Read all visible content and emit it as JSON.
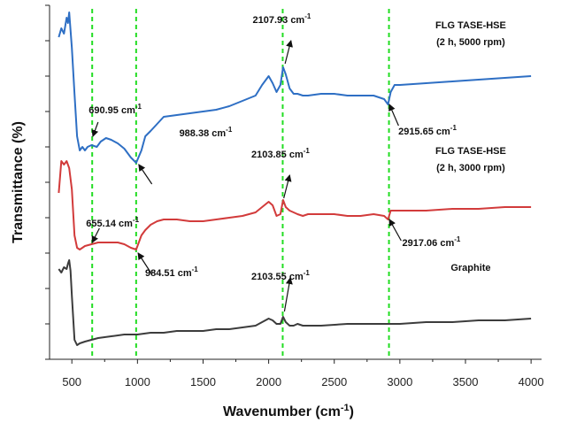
{
  "chart_data": {
    "type": "line",
    "xlabel": "Wavenumber (cm",
    "xlabel_sup": "-1",
    "xlabel_suffix": ")",
    "ylabel": "Transmittance (%)",
    "xlim": [
      330,
      4080
    ],
    "xticks": [
      500,
      1000,
      1500,
      2000,
      2500,
      3000,
      3500,
      4000
    ],
    "y_tick_labels": "none",
    "grid": false,
    "legend": "none",
    "vertical_markers": [
      {
        "x": 655,
        "color": "#22dd22",
        "style": "dashed"
      },
      {
        "x": 990,
        "color": "#22dd22",
        "style": "dashed"
      },
      {
        "x": 2107,
        "color": "#22dd22",
        "style": "dashed"
      },
      {
        "x": 2917,
        "color": "#22dd22",
        "style": "dashed"
      }
    ],
    "series": [
      {
        "color": "#2e6fc4",
        "label_lines": [
          "FLG TASE-HSE",
          "(2 h, 5000 rpm)"
        ],
        "x": [
          400,
          420,
          440,
          460,
          470,
          480,
          490,
          500,
          520,
          540,
          560,
          580,
          600,
          620,
          650,
          690,
          720,
          760,
          800,
          850,
          900,
          950,
          990,
          1030,
          1060,
          1100,
          1150,
          1200,
          1300,
          1400,
          1500,
          1600,
          1700,
          1800,
          1900,
          1950,
          2000,
          2030,
          2060,
          2090,
          2110,
          2130,
          2160,
          2190,
          2220,
          2260,
          2300,
          2400,
          2500,
          2600,
          2700,
          2800,
          2880,
          2910,
          2930,
          2960,
          3000,
          3200,
          3400,
          3600,
          3800,
          4000
        ],
        "y": [
          9.1,
          9.35,
          9.2,
          9.65,
          9.5,
          9.8,
          9.3,
          8.8,
          7.5,
          6.3,
          5.9,
          6.0,
          5.9,
          6.0,
          6.05,
          6.0,
          6.15,
          6.25,
          6.2,
          6.1,
          5.95,
          5.7,
          5.55,
          5.9,
          6.3,
          6.45,
          6.65,
          6.85,
          6.9,
          6.95,
          7.0,
          7.05,
          7.15,
          7.3,
          7.45,
          7.75,
          8.0,
          7.8,
          7.55,
          7.75,
          8.25,
          8.05,
          7.65,
          7.5,
          7.5,
          7.45,
          7.45,
          7.5,
          7.5,
          7.45,
          7.45,
          7.45,
          7.35,
          7.2,
          7.55,
          7.75,
          7.75,
          7.8,
          7.85,
          7.9,
          7.95,
          8.0
        ]
      },
      {
        "color": "#d23b3b",
        "label_lines": [
          "FLG TASE-HSE",
          "(2 h, 3000 rpm)"
        ],
        "x": [
          400,
          420,
          440,
          460,
          480,
          500,
          520,
          540,
          560,
          580,
          600,
          650,
          700,
          750,
          800,
          850,
          900,
          950,
          990,
          1030,
          1060,
          1100,
          1150,
          1200,
          1300,
          1400,
          1500,
          1600,
          1700,
          1800,
          1900,
          1950,
          2000,
          2030,
          2060,
          2090,
          2110,
          2130,
          2160,
          2190,
          2220,
          2260,
          2300,
          2400,
          2500,
          2600,
          2700,
          2800,
          2880,
          2910,
          2930,
          2960,
          3000,
          3200,
          3400,
          3600,
          3800,
          4000
        ],
        "y": [
          4.7,
          5.6,
          5.5,
          5.6,
          5.4,
          4.8,
          3.5,
          3.15,
          3.1,
          3.15,
          3.2,
          3.25,
          3.3,
          3.3,
          3.3,
          3.3,
          3.25,
          3.15,
          3.1,
          3.5,
          3.65,
          3.8,
          3.9,
          3.95,
          3.95,
          3.9,
          3.9,
          3.95,
          4.0,
          4.05,
          4.15,
          4.3,
          4.45,
          4.35,
          4.05,
          4.1,
          4.5,
          4.3,
          4.2,
          4.15,
          4.1,
          4.05,
          4.1,
          4.1,
          4.1,
          4.05,
          4.05,
          4.1,
          4.05,
          3.95,
          4.2,
          4.2,
          4.2,
          4.2,
          4.25,
          4.25,
          4.3,
          4.3
        ]
      },
      {
        "color": "#3c3c3c",
        "label_lines": [
          "Graphite"
        ],
        "x": [
          400,
          420,
          440,
          460,
          470,
          480,
          490,
          500,
          520,
          540,
          560,
          600,
          650,
          700,
          800,
          900,
          1000,
          1100,
          1200,
          1300,
          1400,
          1500,
          1600,
          1700,
          1800,
          1900,
          1950,
          2000,
          2030,
          2060,
          2090,
          2110,
          2130,
          2160,
          2190,
          2220,
          2260,
          2300,
          2400,
          2600,
          2800,
          3000,
          3200,
          3400,
          3600,
          3800,
          4000
        ],
        "y": [
          2.55,
          2.45,
          2.6,
          2.55,
          2.7,
          2.8,
          2.5,
          1.8,
          0.55,
          0.4,
          0.45,
          0.5,
          0.55,
          0.6,
          0.65,
          0.7,
          0.7,
          0.75,
          0.75,
          0.8,
          0.8,
          0.8,
          0.85,
          0.85,
          0.9,
          0.95,
          1.05,
          1.15,
          1.1,
          1.0,
          1.0,
          1.2,
          1.05,
          0.95,
          0.95,
          1.0,
          0.95,
          0.95,
          0.95,
          1.0,
          1.0,
          1.0,
          1.05,
          1.05,
          1.1,
          1.1,
          1.15
        ]
      }
    ],
    "annotations": [
      {
        "series": 0,
        "text": "2107.93 cm",
        "sup": "-1",
        "arrow_from": [
          2170,
          9.0
        ],
        "arrow_to": [
          2125,
          8.35
        ]
      },
      {
        "series": 0,
        "text": "690.95 cm",
        "sup": "-1",
        "arrow_from": [
          660,
          6.3
        ],
        "arrow_to": [
          700,
          6.7
        ]
      },
      {
        "series": 0,
        "text": "988.38 cm",
        "sup": "-1",
        "arrow_from": [
          1010,
          5.5
        ],
        "arrow_to": [
          1110,
          4.95
        ]
      },
      {
        "series": 0,
        "text": "2915.65 cm",
        "sup": "-1",
        "arrow_from": [
          2920,
          7.2
        ],
        "arrow_to": [
          2990,
          6.6
        ]
      },
      {
        "series": 1,
        "text": "2103.85 cm",
        "sup": "-1",
        "arrow_from": [
          2160,
          5.2
        ],
        "arrow_to": [
          2115,
          4.55
        ]
      },
      {
        "series": 1,
        "text": "655.14 cm",
        "sup": "-1",
        "arrow_from": [
          655,
          3.3
        ],
        "arrow_to": [
          710,
          3.7
        ]
      },
      {
        "series": 1,
        "text": "984.51 cm",
        "sup": "-1",
        "arrow_from": [
          1005,
          3.0
        ],
        "arrow_to": [
          1110,
          2.4
        ]
      },
      {
        "series": 1,
        "text": "2917.06 cm",
        "sup": "-1",
        "arrow_from": [
          2920,
          3.95
        ],
        "arrow_to": [
          3010,
          3.35
        ]
      },
      {
        "series": 2,
        "text": "2103.55 cm",
        "sup": "-1",
        "arrow_from": [
          2165,
          2.3
        ],
        "arrow_to": [
          2120,
          1.35
        ]
      }
    ]
  }
}
